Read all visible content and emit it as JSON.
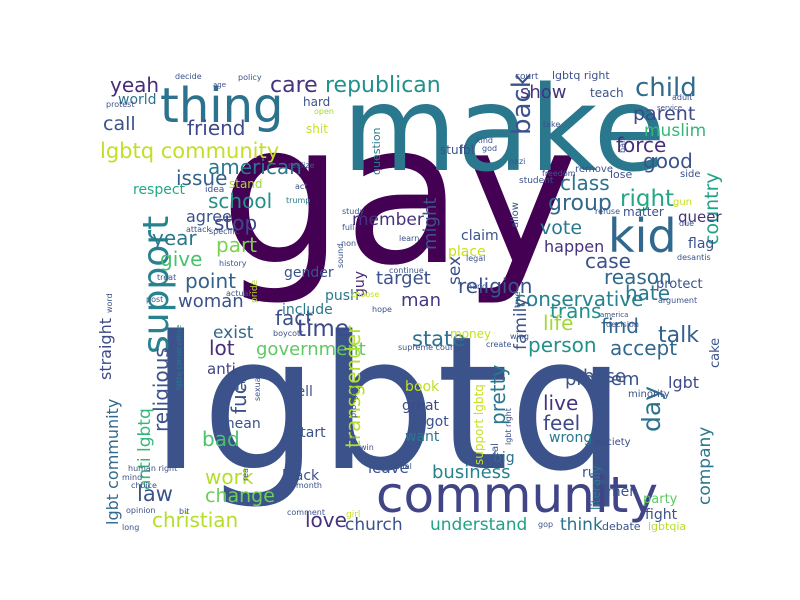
{
  "words": [
    {
      "text": "gay",
      "color": "#440154"
    },
    {
      "text": "lgbtq",
      "color": "#3b528b"
    },
    {
      "text": "make",
      "color": "#2a788e"
    },
    {
      "text": "community",
      "color": "#414487"
    },
    {
      "text": "thing",
      "color": "#2c728e"
    },
    {
      "text": "support",
      "color": "#26828e"
    },
    {
      "text": "kid",
      "color": "#31688e"
    },
    {
      "text": "lgbtq community",
      "color": "#c2df23"
    },
    {
      "text": "republican",
      "color": "#21918c"
    },
    {
      "text": "child",
      "color": "#2f6c8e"
    },
    {
      "text": "back",
      "color": "#3b528b"
    },
    {
      "text": "care",
      "color": "#46327e"
    },
    {
      "text": "friend",
      "color": "#3e4989"
    },
    {
      "text": "yeah",
      "color": "#472c7a"
    },
    {
      "text": "call",
      "color": "#3b528b"
    },
    {
      "text": "show",
      "color": "#46327e"
    },
    {
      "text": "parent",
      "color": "#3e4989"
    },
    {
      "text": "muslim",
      "color": "#35b779"
    },
    {
      "text": "good",
      "color": "#3b528b"
    },
    {
      "text": "force",
      "color": "#472d7b"
    },
    {
      "text": "american",
      "color": "#2a788e"
    },
    {
      "text": "issue",
      "color": "#33638d"
    },
    {
      "text": "class",
      "color": "#2c728e"
    },
    {
      "text": "right",
      "color": "#22a884"
    },
    {
      "text": "country",
      "color": "#20a486"
    },
    {
      "text": "group",
      "color": "#31688e"
    },
    {
      "text": "school",
      "color": "#21918c"
    },
    {
      "text": "stop",
      "color": "#3e4989"
    },
    {
      "text": "year",
      "color": "#2a788e"
    },
    {
      "text": "member",
      "color": "#46327e"
    },
    {
      "text": "might",
      "color": "#3b528b"
    },
    {
      "text": "vote",
      "color": "#2a788e"
    },
    {
      "text": "agree",
      "color": "#3b528b"
    },
    {
      "text": "case",
      "color": "#3b528b"
    },
    {
      "text": "happen",
      "color": "#46327e"
    },
    {
      "text": "part",
      "color": "#7ad151"
    },
    {
      "text": "give",
      "color": "#4ac16d"
    },
    {
      "text": "reason",
      "color": "#31688e"
    },
    {
      "text": "hate",
      "color": "#2a788e"
    },
    {
      "text": "point",
      "color": "#355f8d"
    },
    {
      "text": "target",
      "color": "#3b528b"
    },
    {
      "text": "religion",
      "color": "#3b528b"
    },
    {
      "text": "trans",
      "color": "#21918c"
    },
    {
      "text": "conservative",
      "color": "#26828e"
    },
    {
      "text": "woman",
      "color": "#3b528b"
    },
    {
      "text": "man",
      "color": "#443a83"
    },
    {
      "text": "fact",
      "color": "#3b528b"
    },
    {
      "text": "time",
      "color": "#3e4989"
    },
    {
      "text": "state",
      "color": "#2c728e"
    },
    {
      "text": "life",
      "color": "#a0da39"
    },
    {
      "text": "find",
      "color": "#31688e"
    },
    {
      "text": "talk",
      "color": "#355f8d"
    },
    {
      "text": "person",
      "color": "#21918c"
    },
    {
      "text": "accept",
      "color": "#31688e"
    },
    {
      "text": "exist",
      "color": "#31688e"
    },
    {
      "text": "lot",
      "color": "#472d7b"
    },
    {
      "text": "government",
      "color": "#5ec962"
    },
    {
      "text": "religious",
      "color": "#3b528b"
    },
    {
      "text": "transgender",
      "color": "#b5de2b"
    },
    {
      "text": "pretty",
      "color": "#2a788e"
    },
    {
      "text": "family",
      "color": "#3b528b"
    },
    {
      "text": "base",
      "color": "#3b528b"
    },
    {
      "text": "live",
      "color": "#46327e"
    },
    {
      "text": "problem",
      "color": "#3b528b"
    },
    {
      "text": "lgbt",
      "color": "#3e4989"
    },
    {
      "text": "day",
      "color": "#2c728e"
    },
    {
      "text": "feel",
      "color": "#3e4989"
    },
    {
      "text": "fuck",
      "color": "#3b528b"
    },
    {
      "text": "anti lgbtq",
      "color": "#35b779"
    },
    {
      "text": "bad",
      "color": "#4ac16d"
    },
    {
      "text": "company",
      "color": "#2a788e"
    },
    {
      "text": "work",
      "color": "#b5de2b"
    },
    {
      "text": "change",
      "color": "#6ccd5a"
    },
    {
      "text": "business",
      "color": "#26828e"
    },
    {
      "text": "law",
      "color": "#3b528b"
    },
    {
      "text": "christian",
      "color": "#b5de2b"
    },
    {
      "text": "love",
      "color": "#46327e"
    },
    {
      "text": "church",
      "color": "#3b528b"
    },
    {
      "text": "understand",
      "color": "#1fa187"
    },
    {
      "text": "think",
      "color": "#2c728e"
    },
    {
      "text": "leave",
      "color": "#3b528b"
    },
    {
      "text": "lgbt community",
      "color": "#31688e"
    },
    {
      "text": "straight",
      "color": "#3e4989"
    },
    {
      "text": "world",
      "color": "#2c728e"
    },
    {
      "text": "respect",
      "color": "#22a884"
    },
    {
      "text": "sex",
      "color": "#3b528b"
    },
    {
      "text": "claim",
      "color": "#3b528b"
    },
    {
      "text": "place",
      "color": "#c8e020"
    },
    {
      "text": "gender",
      "color": "#3b528b"
    },
    {
      "text": "include",
      "color": "#2a788e"
    },
    {
      "text": "guy",
      "color": "#472c7a"
    },
    {
      "text": "push",
      "color": "#2a788e"
    },
    {
      "text": "anti",
      "color": "#414487"
    },
    {
      "text": "mean",
      "color": "#3b528b"
    },
    {
      "text": "put",
      "color": "#3b528b"
    },
    {
      "text": "tell",
      "color": "#3b528b"
    },
    {
      "text": "start",
      "color": "#3b528b"
    },
    {
      "text": "great",
      "color": "#3e4989"
    },
    {
      "text": "bigot",
      "color": "#3b528b"
    },
    {
      "text": "want",
      "color": "#2a788e"
    },
    {
      "text": "book",
      "color": "#c2df23"
    },
    {
      "text": "big",
      "color": "#2c728e"
    },
    {
      "text": "wrong",
      "color": "#2a788e"
    },
    {
      "text": "black",
      "color": "#3b528b"
    },
    {
      "text": "rule",
      "color": "#3b528b"
    },
    {
      "text": "men",
      "color": "#3b528b"
    },
    {
      "text": "queer",
      "color": "#46327e"
    },
    {
      "text": "flag",
      "color": "#3b528b"
    },
    {
      "text": "protect",
      "color": "#3b528b"
    },
    {
      "text": "fight",
      "color": "#3b528b"
    },
    {
      "text": "party",
      "color": "#5ec962"
    },
    {
      "text": "cake",
      "color": "#3b528b"
    },
    {
      "text": "debate",
      "color": "#3b528b"
    },
    {
      "text": "lgbtqia",
      "color": "#b5de2b"
    },
    {
      "text": "literally",
      "color": "#2a788e"
    },
    {
      "text": "society",
      "color": "#3e4989"
    },
    {
      "text": "minority",
      "color": "#3b528b"
    },
    {
      "text": "matter",
      "color": "#3b528b"
    },
    {
      "text": "lose",
      "color": "#3b528b"
    },
    {
      "text": "remove",
      "color": "#3b528b"
    },
    {
      "text": "teach",
      "color": "#3b528b"
    },
    {
      "text": "stuff",
      "color": "#3b528b"
    },
    {
      "text": "question",
      "color": "#2a788e"
    },
    {
      "text": "lol",
      "color": "#3b528b"
    },
    {
      "text": "hard",
      "color": "#3b528b"
    },
    {
      "text": "shit",
      "color": "#c8e020"
    },
    {
      "text": "stand",
      "color": "#a0da39"
    },
    {
      "text": "idea",
      "color": "#3e4989"
    },
    {
      "text": "lgbtq right",
      "color": "#3b528b"
    },
    {
      "text": "court",
      "color": "#3b528b"
    },
    {
      "text": "decide",
      "color": "#3b528b"
    },
    {
      "text": "age",
      "color": "#3b528b"
    },
    {
      "text": "policy",
      "color": "#3b528b"
    },
    {
      "text": "protest",
      "color": "#3b528b"
    },
    {
      "text": "open",
      "color": "#a0da39"
    },
    {
      "text": "realize",
      "color": "#3b528b"
    },
    {
      "text": "act",
      "color": "#3b528b"
    },
    {
      "text": "trump",
      "color": "#2a788e"
    },
    {
      "text": "attack",
      "color": "#3b528b"
    },
    {
      "text": "specific",
      "color": "#3b528b"
    },
    {
      "text": "history",
      "color": "#3b528b"
    },
    {
      "text": "treat",
      "color": "#3b528b"
    },
    {
      "text": "actual",
      "color": "#3b528b"
    },
    {
      "text": "post",
      "color": "#3b528b"
    },
    {
      "text": "pride",
      "color": "#b5de2b"
    },
    {
      "text": "boycott",
      "color": "#3b528b"
    },
    {
      "text": "hope",
      "color": "#3b528b"
    },
    {
      "text": "choose",
      "color": "#c8e020"
    },
    {
      "text": "continue",
      "color": "#3b528b"
    },
    {
      "text": "learn",
      "color": "#3b528b"
    },
    {
      "text": "hand",
      "color": "#3b528b"
    },
    {
      "text": "legal",
      "color": "#3b528b"
    },
    {
      "text": "money",
      "color": "#c8e020"
    },
    {
      "text": "create",
      "color": "#3b528b"
    },
    {
      "text": "supreme court",
      "color": "#3b528b"
    },
    {
      "text": "decision",
      "color": "#3b528b"
    },
    {
      "text": "america",
      "color": "#3b528b"
    },
    {
      "text": "argument",
      "color": "#3b528b"
    },
    {
      "text": "desantis",
      "color": "#3b528b"
    },
    {
      "text": "due",
      "color": "#3b528b"
    },
    {
      "text": "refuse",
      "color": "#3b528b"
    },
    {
      "text": "freedom",
      "color": "#3b528b"
    },
    {
      "text": "student",
      "color": "#3b528b"
    },
    {
      "text": "nazi",
      "color": "#3b528b"
    },
    {
      "text": "kind",
      "color": "#3b528b"
    },
    {
      "text": "god",
      "color": "#3b528b"
    },
    {
      "text": "ban",
      "color": "#3b528b"
    },
    {
      "text": "service",
      "color": "#3b528b"
    },
    {
      "text": "adult",
      "color": "#3b528b"
    },
    {
      "text": "take",
      "color": "#3b528b"
    },
    {
      "text": "gun",
      "color": "#c8e020"
    },
    {
      "text": "side",
      "color": "#3b528b"
    },
    {
      "text": "study",
      "color": "#3b528b"
    },
    {
      "text": "full",
      "color": "#3b528b"
    },
    {
      "text": "non",
      "color": "#3b528b"
    },
    {
      "text": "sound",
      "color": "#3b528b"
    },
    {
      "text": "allow",
      "color": "#3b528b"
    },
    {
      "text": "true",
      "color": "#3b528b"
    },
    {
      "text": "wing",
      "color": "#3b528b"
    },
    {
      "text": "real",
      "color": "#3b528b"
    },
    {
      "text": "pro lgbtq",
      "color": "#3b528b"
    },
    {
      "text": "support lgbtq",
      "color": "#c8e020"
    },
    {
      "text": "lgbt right",
      "color": "#3b528b"
    },
    {
      "text": "end",
      "color": "#3b528b"
    },
    {
      "text": "win",
      "color": "#3b528b"
    },
    {
      "text": "individual",
      "color": "#3b528b"
    },
    {
      "text": "girl",
      "color": "#c8e020"
    },
    {
      "text": "comment",
      "color": "#3b528b"
    },
    {
      "text": "month",
      "color": "#3b528b"
    },
    {
      "text": "read",
      "color": "#3b528b"
    },
    {
      "text": "human right",
      "color": "#3b528b"
    },
    {
      "text": "mind",
      "color": "#3b528b"
    },
    {
      "text": "choice",
      "color": "#3b528b"
    },
    {
      "text": "opinion",
      "color": "#3b528b"
    },
    {
      "text": "bit",
      "color": "#3b528b"
    },
    {
      "text": "long",
      "color": "#3b528b"
    },
    {
      "text": "word",
      "color": "#3b528b"
    },
    {
      "text": "lgbtq conservative",
      "color": "#2a788e"
    },
    {
      "text": "sexuality",
      "color": "#3b528b"
    },
    {
      "text": "gop",
      "color": "#3b528b"
    }
  ]
}
